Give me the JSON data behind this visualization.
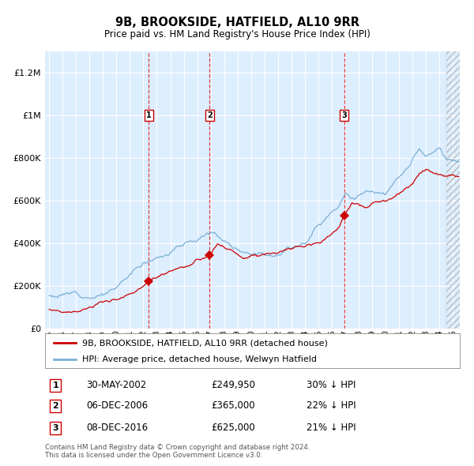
{
  "title": "9B, BROOKSIDE, HATFIELD, AL10 9RR",
  "subtitle": "Price paid vs. HM Land Registry's House Price Index (HPI)",
  "ylim": [
    0,
    1300000
  ],
  "xlim_start": 1994.7,
  "xlim_end": 2025.5,
  "yticks": [
    0,
    200000,
    400000,
    600000,
    800000,
    1000000,
    1200000
  ],
  "ytick_labels": [
    "£0",
    "£200K",
    "£400K",
    "£600K",
    "£800K",
    "£1M",
    "£1.2M"
  ],
  "plot_bg_color": "#ddeeff",
  "grid_color": "#ffffff",
  "sale_color": "#cc0000",
  "hpi_color": "#7bafd4",
  "sale_label": "9B, BROOKSIDE, HATFIELD, AL10 9RR (detached house)",
  "hpi_label": "HPI: Average price, detached house, Welwyn Hatfield",
  "transactions": [
    {
      "num": 1,
      "date_label": "30-MAY-2002",
      "date_x": 2002.41,
      "price": 249950,
      "pct": "30%",
      "dir": "↓"
    },
    {
      "num": 2,
      "date_label": "06-DEC-2006",
      "date_x": 2006.92,
      "price": 365000,
      "pct": "22%",
      "dir": "↓"
    },
    {
      "num": 3,
      "date_label": "08-DEC-2016",
      "date_x": 2016.92,
      "price": 625000,
      "pct": "21%",
      "dir": "↓"
    }
  ],
  "footnote1": "Contains HM Land Registry data © Crown copyright and database right 2024.",
  "footnote2": "This data is licensed under the Open Government Licence v3.0.",
  "xtick_years": [
    1995,
    1996,
    1997,
    1998,
    1999,
    2000,
    2001,
    2002,
    2003,
    2004,
    2005,
    2006,
    2007,
    2008,
    2009,
    2010,
    2011,
    2012,
    2013,
    2014,
    2015,
    2016,
    2017,
    2018,
    2019,
    2020,
    2021,
    2022,
    2023,
    2024,
    2025
  ]
}
